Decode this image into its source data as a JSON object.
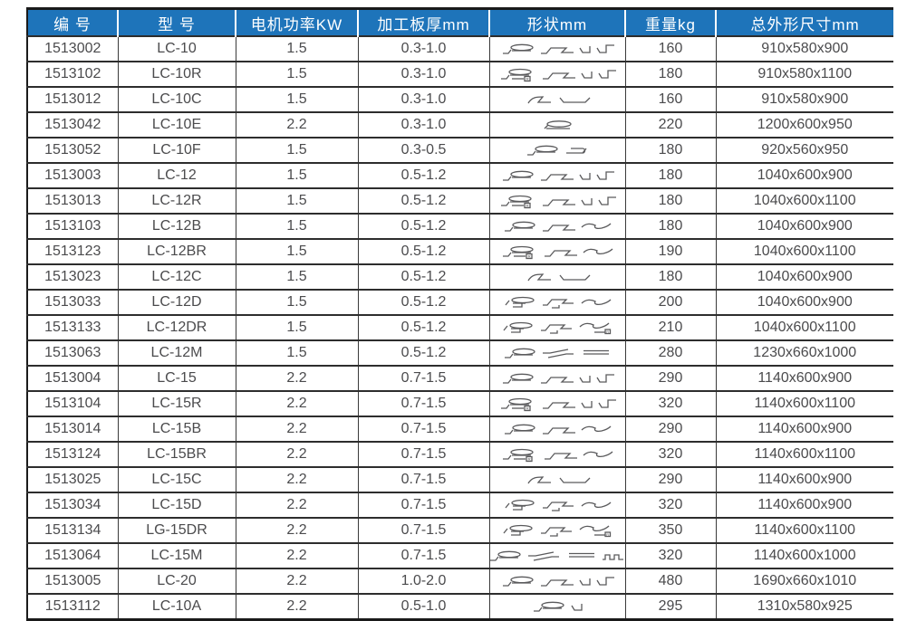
{
  "colors": {
    "header_bg": "#1e74ba",
    "header_text": "#ffffff",
    "body_text": "#4b4b4d",
    "grid_line": "#2d2d2d"
  },
  "table": {
    "columns": [
      {
        "key": "code",
        "label": "编 号"
      },
      {
        "key": "model",
        "label": "型 号"
      },
      {
        "key": "power",
        "label": "电机功率KW"
      },
      {
        "key": "thickness",
        "label": "加工板厚mm"
      },
      {
        "key": "shapes",
        "label": "形状mm"
      },
      {
        "key": "weight",
        "label": "重量kg"
      },
      {
        "key": "dims",
        "label": "总外形尺寸mm"
      }
    ],
    "rows": [
      {
        "code": "1513002",
        "model": "LC-10",
        "power": "1.5",
        "thickness": "0.3-1.0",
        "shapes": [
          "pittsburgh-lock-icon",
          "snap-lock-icon",
          "small-hook-icon",
          "step-hook-icon"
        ],
        "weight": "160",
        "dims": "910x580x900"
      },
      {
        "code": "1513102",
        "model": "LC-10R",
        "power": "1.5",
        "thickness": "0.3-1.0",
        "shapes": [
          "pittsburgh-lock-r-icon",
          "snap-lock-icon",
          "small-hook-icon",
          "step-hook-icon"
        ],
        "weight": "180",
        "dims": "910x580x1100"
      },
      {
        "code": "1513012",
        "model": "LC-10C",
        "power": "1.5",
        "thickness": "0.3-1.0",
        "shapes": [
          "z-curve-icon",
          "flat-seam-icon"
        ],
        "weight": "160",
        "dims": "910x580x900"
      },
      {
        "code": "1513042",
        "model": "LC-10E",
        "power": "2.2",
        "thickness": "0.3-1.0",
        "shapes": [
          "flat-oval-icon"
        ],
        "weight": "220",
        "dims": "1200x600x950"
      },
      {
        "code": "1513052",
        "model": "LC-10F",
        "power": "1.5",
        "thickness": "0.3-0.5",
        "shapes": [
          "pittsburgh-lock-icon",
          "oval-hook-icon"
        ],
        "weight": "180",
        "dims": "920x560x950"
      },
      {
        "code": "1513003",
        "model": "LC-12",
        "power": "1.5",
        "thickness": "0.5-1.2",
        "shapes": [
          "pittsburgh-lock-icon",
          "snap-lock-icon",
          "small-hook-icon",
          "step-hook-icon"
        ],
        "weight": "180",
        "dims": "1040x600x900"
      },
      {
        "code": "1513013",
        "model": "LC-12R",
        "power": "1.5",
        "thickness": "0.5-1.2",
        "shapes": [
          "pittsburgh-lock-r-icon",
          "snap-lock-icon",
          "small-hook-icon",
          "step-hook-icon"
        ],
        "weight": "180",
        "dims": "1040x600x1100"
      },
      {
        "code": "1513103",
        "model": "LC-12B",
        "power": "1.5",
        "thickness": "0.5-1.2",
        "shapes": [
          "pittsburgh-lock-icon",
          "snap-lock-icon",
          "s-curve-icon"
        ],
        "weight": "180",
        "dims": "1040x600x900"
      },
      {
        "code": "1513123",
        "model": "LC-12BR",
        "power": "1.5",
        "thickness": "0.5-1.2",
        "shapes": [
          "pittsburgh-lock-r-icon",
          "snap-lock-icon",
          "s-curve-icon"
        ],
        "weight": "190",
        "dims": "1040x600x1100"
      },
      {
        "code": "1513023",
        "model": "LC-12C",
        "power": "1.5",
        "thickness": "0.5-1.2",
        "shapes": [
          "z-curve-icon",
          "flat-seam-icon"
        ],
        "weight": "180",
        "dims": "1040x600x900"
      },
      {
        "code": "1513033",
        "model": "LC-12D",
        "power": "1.5",
        "thickness": "0.5-1.2",
        "shapes": [
          "pittsburgh-step-icon",
          "snap-step-icon",
          "s-curve-icon"
        ],
        "weight": "200",
        "dims": "1040x600x900"
      },
      {
        "code": "1513133",
        "model": "LC-12DR",
        "power": "1.5",
        "thickness": "0.5-1.2",
        "shapes": [
          "pittsburgh-step-icon",
          "snap-step-icon",
          "s-curve-r-icon"
        ],
        "weight": "210",
        "dims": "1040x600x1100"
      },
      {
        "code": "1513063",
        "model": "LC-12M",
        "power": "1.5",
        "thickness": "0.5-1.2",
        "shapes": [
          "pittsburgh-lock-icon",
          "z-snap-icon",
          "double-flat-icon"
        ],
        "weight": "280",
        "dims": "1230x660x1000"
      },
      {
        "code": "1513004",
        "model": "LC-15",
        "power": "2.2",
        "thickness": "0.7-1.5",
        "shapes": [
          "pittsburgh-lock-icon",
          "snap-lock-icon",
          "small-hook-icon",
          "step-hook-icon"
        ],
        "weight": "290",
        "dims": "1140x600x900"
      },
      {
        "code": "1513104",
        "model": "LC-15R",
        "power": "2.2",
        "thickness": "0.7-1.5",
        "shapes": [
          "pittsburgh-lock-r-icon",
          "snap-lock-icon",
          "small-hook-icon",
          "step-hook-icon"
        ],
        "weight": "320",
        "dims": "1140x600x1100"
      },
      {
        "code": "1513014",
        "model": "LC-15B",
        "power": "2.2",
        "thickness": "0.7-1.5",
        "shapes": [
          "pittsburgh-lock-icon",
          "snap-lock-icon",
          "s-curve-icon"
        ],
        "weight": "290",
        "dims": "1140x600x900"
      },
      {
        "code": "1513124",
        "model": "LC-15BR",
        "power": "2.2",
        "thickness": "0.7-1.5",
        "shapes": [
          "pittsburgh-lock-r-icon",
          "snap-lock-icon",
          "s-curve-icon"
        ],
        "weight": "320",
        "dims": "1140x600x1100"
      },
      {
        "code": "1513025",
        "model": "LC-15C",
        "power": "2.2",
        "thickness": "0.7-1.5",
        "shapes": [
          "z-curve-icon",
          "flat-seam-icon"
        ],
        "weight": "290",
        "dims": "1140x600x900"
      },
      {
        "code": "1513034",
        "model": "LC-15D",
        "power": "2.2",
        "thickness": "0.7-1.5",
        "shapes": [
          "pittsburgh-step-icon",
          "snap-step-icon",
          "s-curve-icon"
        ],
        "weight": "320",
        "dims": "1140x600x900"
      },
      {
        "code": "1513134",
        "model": "LG-15DR",
        "power": "2.2",
        "thickness": "0.7-1.5",
        "shapes": [
          "pittsburgh-step-icon",
          "snap-step-icon",
          "s-curve-r-icon"
        ],
        "weight": "350",
        "dims": "1140x600x1100"
      },
      {
        "code": "1513064",
        "model": "LC-15M",
        "power": "2.2",
        "thickness": "0.7-1.5",
        "shapes": [
          "pittsburgh-lock-icon",
          "z-snap-icon",
          "double-flat-icon",
          "corrugate-icon"
        ],
        "weight": "320",
        "dims": "1140x600x1000"
      },
      {
        "code": "1513005",
        "model": "LC-20",
        "power": "2.2",
        "thickness": "1.0-2.0",
        "shapes": [
          "pittsburgh-lock-icon",
          "snap-lock-icon",
          "small-hook-icon",
          "step-hook-icon"
        ],
        "weight": "480",
        "dims": "1690x660x1010"
      },
      {
        "code": "1513112",
        "model": "LC-10A",
        "power": "2.2",
        "thickness": "0.5-1.0",
        "shapes": [
          "pittsburgh-lock-icon",
          "small-hook-icon"
        ],
        "weight": "295",
        "dims": "1310x580x925"
      }
    ]
  }
}
